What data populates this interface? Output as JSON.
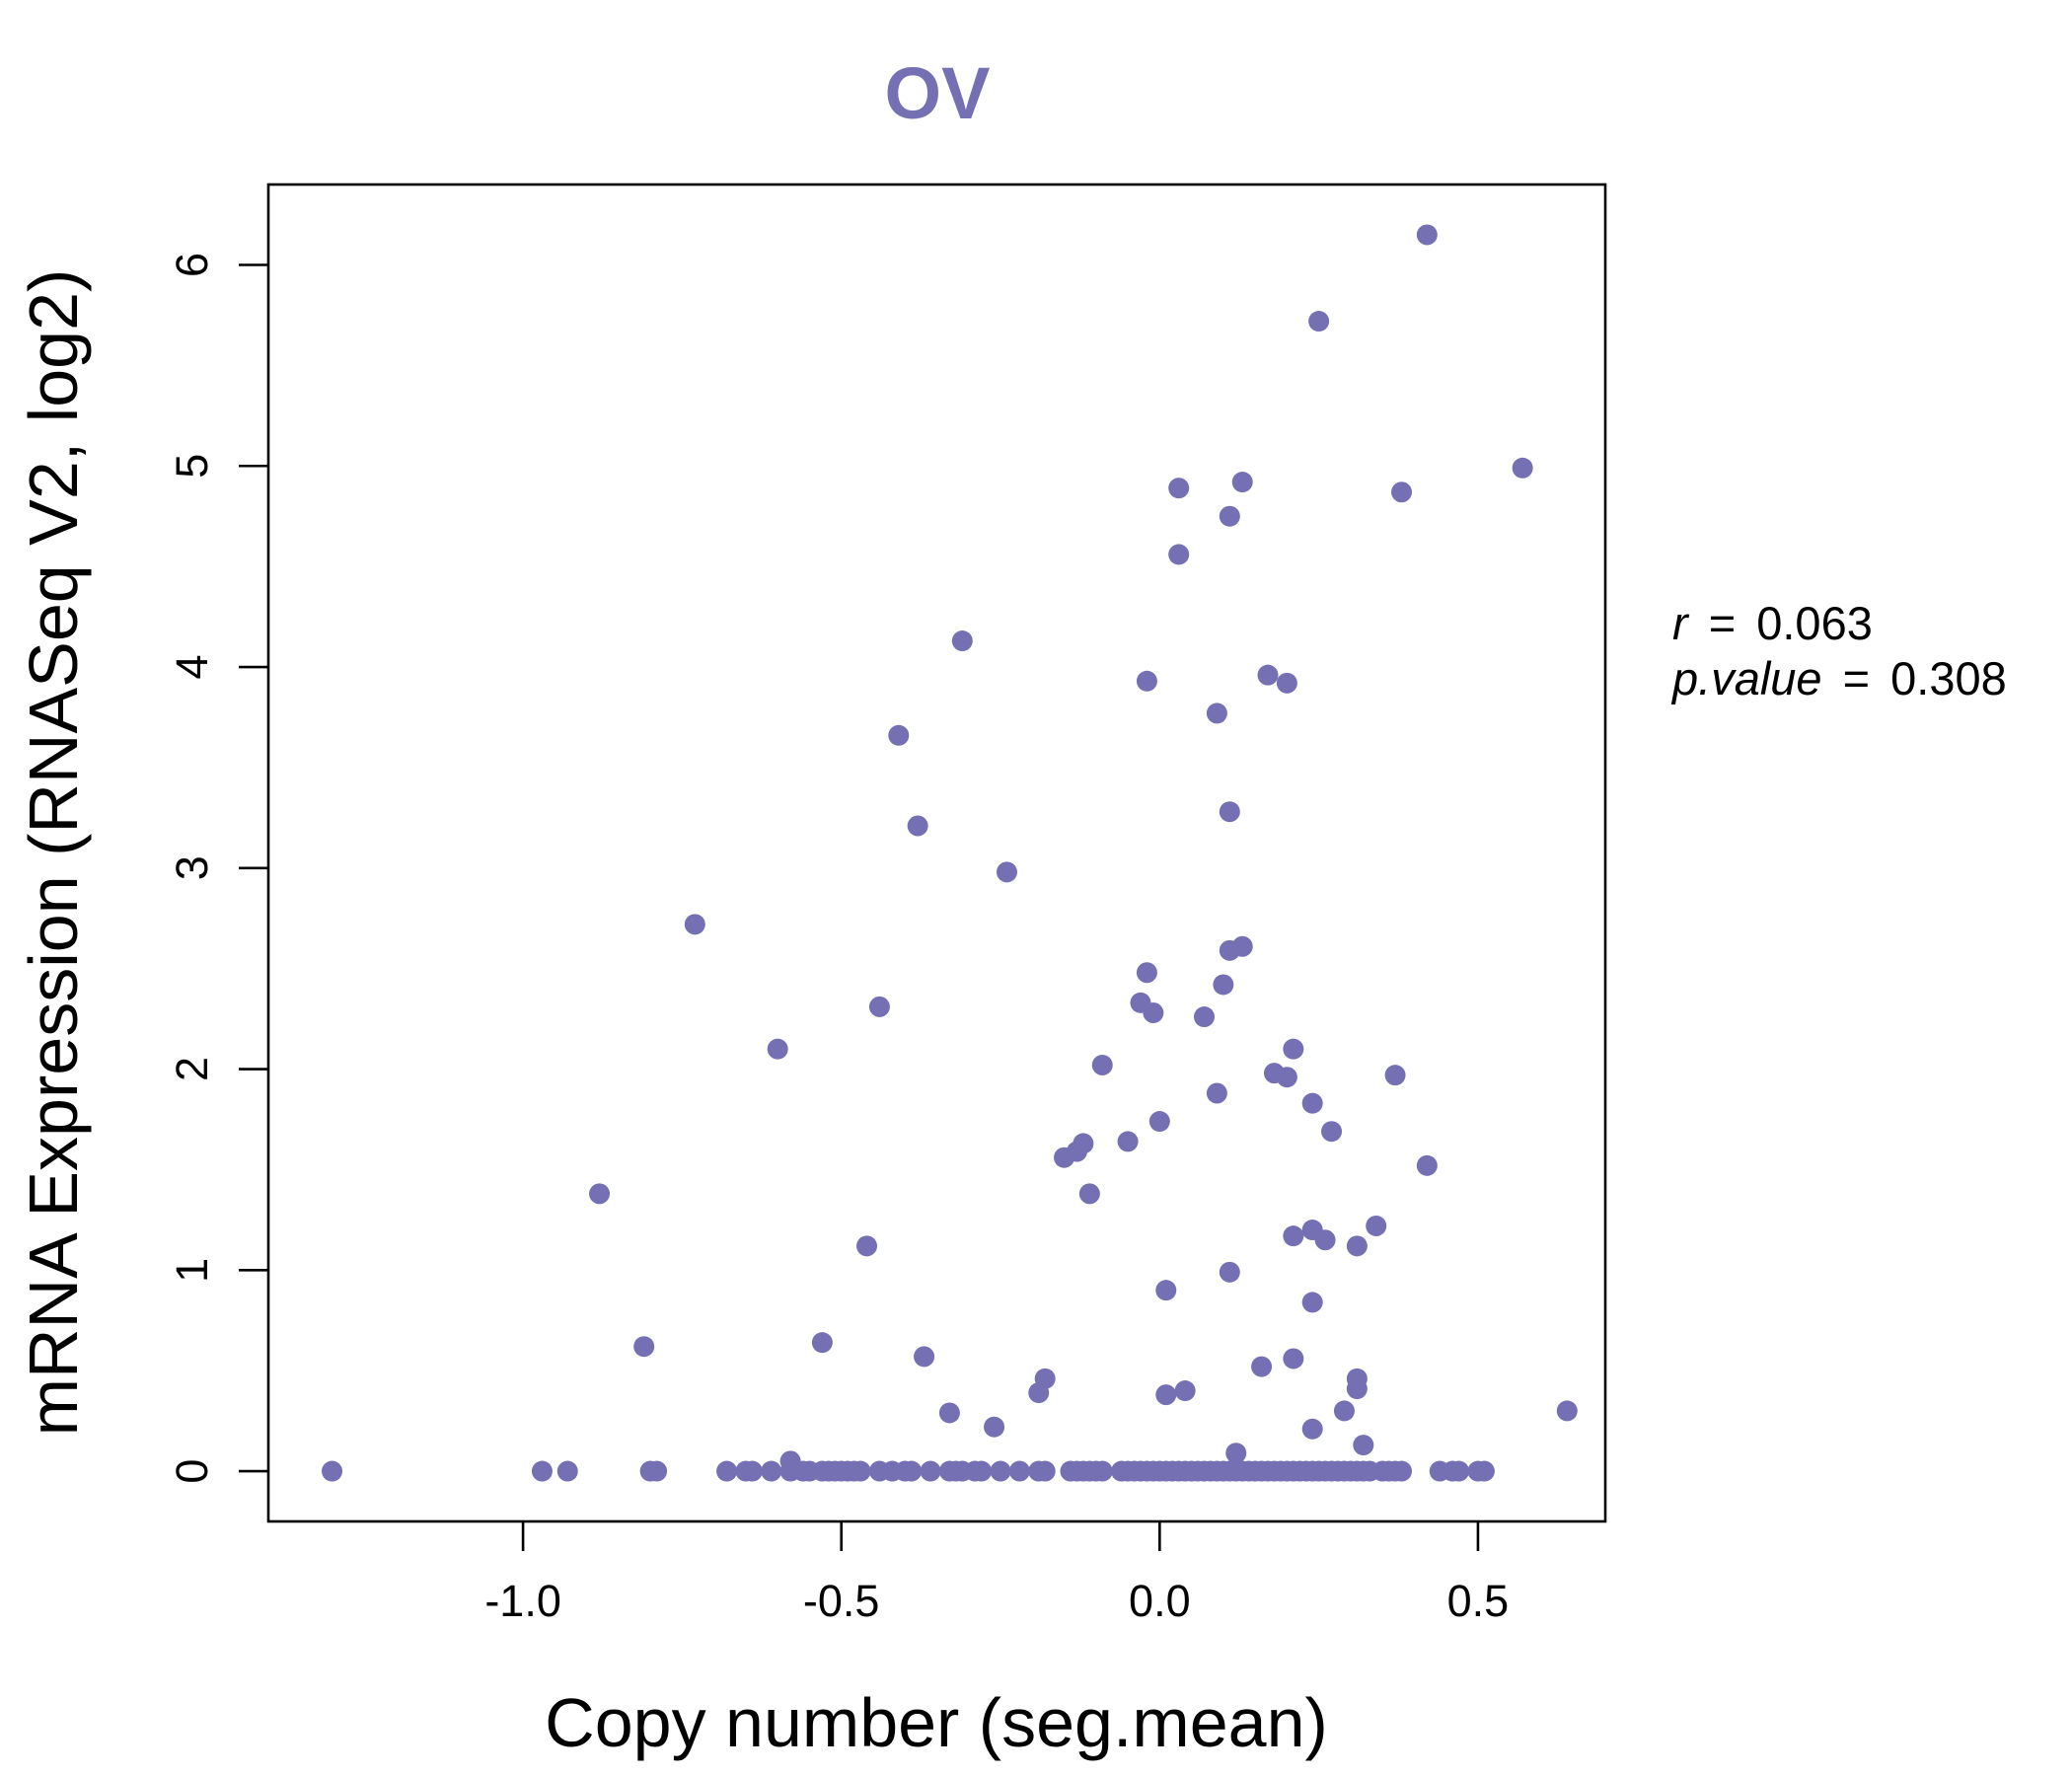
{
  "chart_data": {
    "type": "scatter",
    "title": "OV",
    "xlabel": "Copy number (seg.mean)",
    "ylabel": "mRNA Expression (RNASeq V2, log2)",
    "xlim": [
      -1.4,
      0.7
    ],
    "ylim": [
      -0.25,
      6.4
    ],
    "x_ticks": [
      -1.0,
      -0.5,
      0.0,
      0.5
    ],
    "x_tick_labels": [
      "-1.0",
      "-0.5",
      "0.0",
      "0.5"
    ],
    "y_ticks": [
      0,
      1,
      2,
      3,
      4,
      5,
      6
    ],
    "y_tick_labels": [
      "0",
      "1",
      "2",
      "3",
      "4",
      "5",
      "6"
    ],
    "point_color": "#7570B3",
    "grid": false,
    "stats": {
      "r_label": "r",
      "r_value": "0.063",
      "p_label": "p.value",
      "p_value": "0.308"
    },
    "series": [
      {
        "points": [
          [
            -1.3,
            0.0
          ],
          [
            -0.97,
            0.0
          ],
          [
            -0.93,
            0.0
          ],
          [
            -0.8,
            0.0
          ],
          [
            -0.79,
            0.0
          ],
          [
            -0.68,
            0.0
          ],
          [
            -0.65,
            0.0
          ],
          [
            -0.64,
            0.0
          ],
          [
            -0.61,
            0.0
          ],
          [
            -0.58,
            0.0
          ],
          [
            -0.56,
            0.0
          ],
          [
            -0.55,
            0.0
          ],
          [
            -0.53,
            0.0
          ],
          [
            -0.52,
            0.0
          ],
          [
            -0.51,
            0.0
          ],
          [
            -0.5,
            0.0
          ],
          [
            -0.49,
            0.0
          ],
          [
            -0.48,
            0.0
          ],
          [
            -0.47,
            0.0
          ],
          [
            -0.44,
            0.0
          ],
          [
            -0.42,
            0.0
          ],
          [
            -0.4,
            0.0
          ],
          [
            -0.39,
            0.0
          ],
          [
            -0.36,
            0.0
          ],
          [
            -0.33,
            0.0
          ],
          [
            -0.32,
            0.0
          ],
          [
            -0.31,
            0.0
          ],
          [
            -0.29,
            0.0
          ],
          [
            -0.28,
            0.0
          ],
          [
            -0.25,
            0.0
          ],
          [
            -0.22,
            0.0
          ],
          [
            -0.19,
            0.0
          ],
          [
            -0.18,
            0.0
          ],
          [
            -0.14,
            0.0
          ],
          [
            -0.13,
            0.0
          ],
          [
            -0.12,
            0.0
          ],
          [
            -0.11,
            0.0
          ],
          [
            -0.1,
            0.0
          ],
          [
            -0.09,
            0.0
          ],
          [
            -0.06,
            0.0
          ],
          [
            -0.05,
            0.0
          ],
          [
            -0.04,
            0.0
          ],
          [
            -0.03,
            0.0
          ],
          [
            -0.02,
            0.0
          ],
          [
            -0.01,
            0.0
          ],
          [
            0.0,
            0.0
          ],
          [
            0.01,
            0.0
          ],
          [
            0.02,
            0.0
          ],
          [
            0.03,
            0.0
          ],
          [
            0.04,
            0.0
          ],
          [
            0.05,
            0.0
          ],
          [
            0.06,
            0.0
          ],
          [
            0.07,
            0.0
          ],
          [
            0.08,
            0.0
          ],
          [
            0.09,
            0.0
          ],
          [
            0.1,
            0.0
          ],
          [
            0.11,
            0.0
          ],
          [
            0.12,
            0.0
          ],
          [
            0.13,
            0.0
          ],
          [
            0.14,
            0.0
          ],
          [
            0.15,
            0.0
          ],
          [
            0.16,
            0.0
          ],
          [
            0.17,
            0.0
          ],
          [
            0.18,
            0.0
          ],
          [
            0.19,
            0.0
          ],
          [
            0.2,
            0.0
          ],
          [
            0.21,
            0.0
          ],
          [
            0.22,
            0.0
          ],
          [
            0.23,
            0.0
          ],
          [
            0.24,
            0.0
          ],
          [
            0.25,
            0.0
          ],
          [
            0.26,
            0.0
          ],
          [
            0.27,
            0.0
          ],
          [
            0.28,
            0.0
          ],
          [
            0.29,
            0.0
          ],
          [
            0.3,
            0.0
          ],
          [
            0.31,
            0.0
          ],
          [
            0.32,
            0.0
          ],
          [
            0.33,
            0.0
          ],
          [
            0.35,
            0.0
          ],
          [
            0.36,
            0.0
          ],
          [
            0.37,
            0.0
          ],
          [
            0.38,
            0.0
          ],
          [
            0.44,
            0.0
          ],
          [
            0.46,
            0.0
          ],
          [
            0.47,
            0.0
          ],
          [
            0.5,
            0.0
          ],
          [
            0.51,
            0.0
          ],
          [
            -0.58,
            0.05
          ],
          [
            0.12,
            0.09
          ],
          [
            0.32,
            0.13
          ],
          [
            -0.26,
            0.22
          ],
          [
            0.24,
            0.21
          ],
          [
            -0.33,
            0.29
          ],
          [
            0.29,
            0.3
          ],
          [
            0.64,
            0.3
          ],
          [
            -0.19,
            0.39
          ],
          [
            0.01,
            0.38
          ],
          [
            0.04,
            0.4
          ],
          [
            0.31,
            0.41
          ],
          [
            -0.18,
            0.46
          ],
          [
            0.31,
            0.46
          ],
          [
            0.16,
            0.52
          ],
          [
            0.21,
            0.56
          ],
          [
            -0.37,
            0.57
          ],
          [
            -0.53,
            0.64
          ],
          [
            -0.81,
            0.62
          ],
          [
            0.24,
            0.84
          ],
          [
            0.01,
            0.9
          ],
          [
            0.11,
            0.99
          ],
          [
            -0.46,
            1.12
          ],
          [
            0.31,
            1.12
          ],
          [
            0.26,
            1.15
          ],
          [
            0.21,
            1.17
          ],
          [
            0.24,
            1.2
          ],
          [
            0.34,
            1.22
          ],
          [
            -0.88,
            1.38
          ],
          [
            -0.11,
            1.38
          ],
          [
            0.42,
            1.52
          ],
          [
            -0.15,
            1.56
          ],
          [
            -0.13,
            1.59
          ],
          [
            -0.12,
            1.63
          ],
          [
            -0.05,
            1.64
          ],
          [
            0.27,
            1.69
          ],
          [
            0.0,
            1.74
          ],
          [
            0.24,
            1.83
          ],
          [
            0.09,
            1.88
          ],
          [
            0.2,
            1.96
          ],
          [
            0.37,
            1.97
          ],
          [
            0.18,
            1.98
          ],
          [
            -0.09,
            2.02
          ],
          [
            -0.6,
            2.1
          ],
          [
            0.21,
            2.1
          ],
          [
            0.07,
            2.26
          ],
          [
            -0.01,
            2.28
          ],
          [
            -0.44,
            2.31
          ],
          [
            -0.03,
            2.33
          ],
          [
            0.1,
            2.42
          ],
          [
            -0.02,
            2.48
          ],
          [
            0.11,
            2.59
          ],
          [
            0.13,
            2.61
          ],
          [
            -0.73,
            2.72
          ],
          [
            -0.24,
            2.98
          ],
          [
            -0.38,
            3.21
          ],
          [
            0.11,
            3.28
          ],
          [
            -0.41,
            3.66
          ],
          [
            0.09,
            3.77
          ],
          [
            -0.02,
            3.93
          ],
          [
            0.2,
            3.92
          ],
          [
            0.17,
            3.96
          ],
          [
            -0.31,
            4.13
          ],
          [
            0.03,
            4.56
          ],
          [
            0.11,
            4.75
          ],
          [
            0.03,
            4.89
          ],
          [
            0.13,
            4.92
          ],
          [
            0.38,
            4.87
          ],
          [
            0.57,
            4.99
          ],
          [
            0.25,
            5.72
          ],
          [
            0.42,
            6.15
          ]
        ]
      }
    ]
  }
}
